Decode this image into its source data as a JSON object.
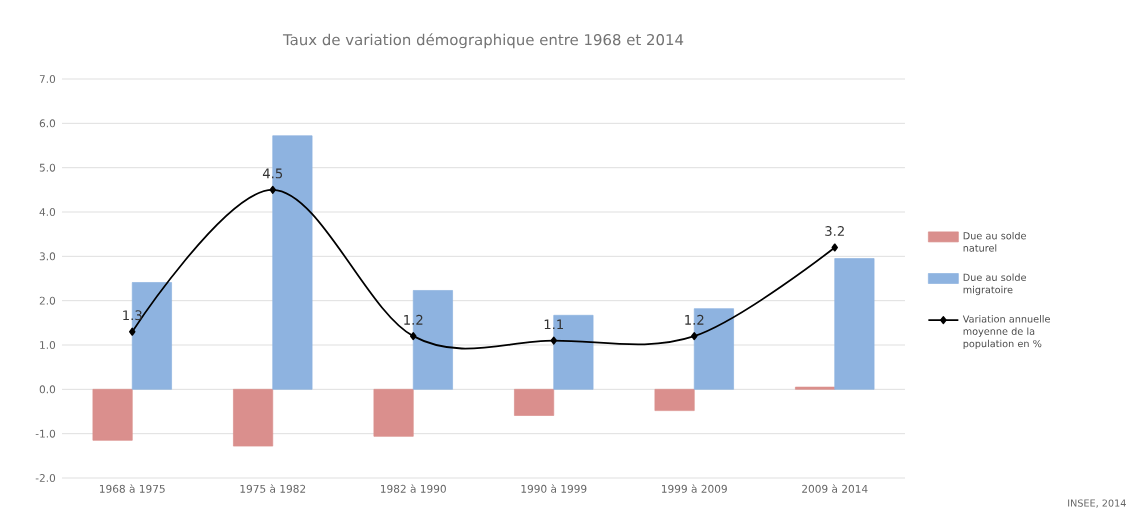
{
  "chart_data": {
    "type": "bar",
    "title": "Taux de variation démographique entre 1968 et 2014",
    "categories": [
      "1968 à 1975",
      "1975 à 1982",
      "1982 à 1990",
      "1990 à 1999",
      "1999 à 2009",
      "2009 à 2014"
    ],
    "series": [
      {
        "name": "Due au solde naturel",
        "color": "#da8f8d",
        "values": [
          -1.15,
          -1.28,
          -1.06,
          -0.59,
          -0.48,
          0.05
        ]
      },
      {
        "name": "Due au solde migratoire",
        "color": "#8eb3e0",
        "values": [
          2.41,
          5.72,
          2.23,
          1.67,
          1.82,
          2.95
        ]
      },
      {
        "name": "Variation annuelle moyenne de la population en %",
        "type": "line",
        "color": "#000000",
        "values": [
          1.3,
          4.5,
          1.2,
          1.1,
          1.2,
          3.2
        ],
        "data_labels": true,
        "marker": "diamond"
      }
    ],
    "ylim": [
      -2,
      7
    ],
    "yticks": [
      {
        "value": -2,
        "label": "-2.0"
      },
      {
        "value": -1,
        "label": "-1.0"
      },
      {
        "value": 0,
        "label": "0.0"
      },
      {
        "value": 1,
        "label": "1.0"
      },
      {
        "value": 2,
        "label": "2.0"
      },
      {
        "value": 3,
        "label": "3.0"
      },
      {
        "value": 4,
        "label": "4.0"
      },
      {
        "value": 5,
        "label": "5.0"
      },
      {
        "value": 6,
        "label": "6.0"
      },
      {
        "value": 7,
        "label": "7.0"
      }
    ],
    "grid": "y",
    "legend": "right",
    "annotations": [
      "INSEE, 2014"
    ]
  }
}
